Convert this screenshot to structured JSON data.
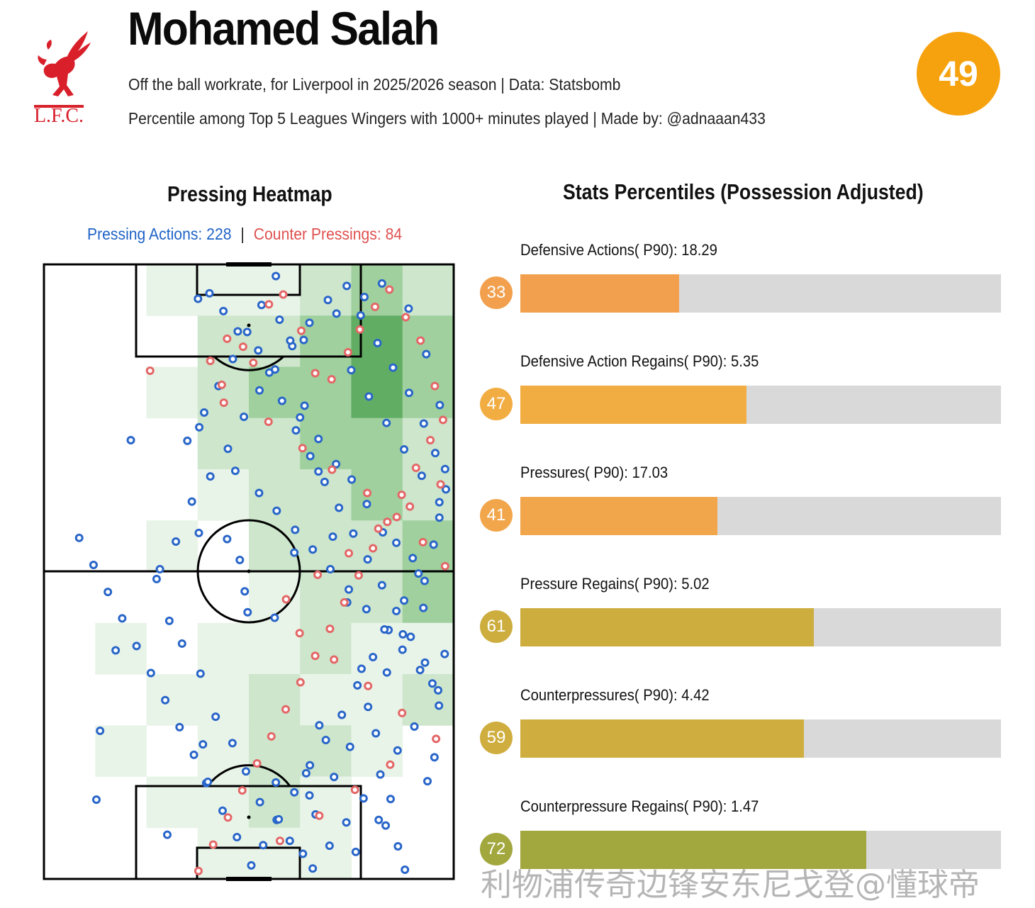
{
  "header": {
    "title": "Mohamed Salah",
    "subtitle1": "Off the ball workrate, for Liverpool in 2025/2026 season | Data: Statsbomb",
    "subtitle2": "Percentile among Top 5 Leagues Wingers with 1000+ minutes played | Made by: @adnaaan433",
    "overall_score": "49",
    "logo_text": "L.F.C."
  },
  "heatmap": {
    "title": "Pressing Heatmap",
    "pressing_label": "Pressing Actions: 228",
    "separator": "|",
    "counter_label": "Counter Pressings: 84"
  },
  "stats": {
    "title": "Stats Percentiles (Possession Adjusted)",
    "items": [
      {
        "label": "Defensive Actions( P90): 18.29",
        "percentile": "33",
        "value": 33,
        "color": "#f2a04e"
      },
      {
        "label": "Defensive Action Regains( P90): 5.35",
        "percentile": "47",
        "value": 47,
        "color": "#f2ad42"
      },
      {
        "label": "Pressures( P90): 17.03",
        "percentile": "41",
        "value": 41,
        "color": "#f2a64c"
      },
      {
        "label": "Pressure Regains( P90): 5.02",
        "percentile": "61",
        "value": 61,
        "color": "#ccad3e"
      },
      {
        "label": "Counterpressures( P90): 4.42",
        "percentile": "59",
        "value": 59,
        "color": "#cfae3f"
      },
      {
        "label": "Counterpressure Regains( P90): 1.47",
        "percentile": "72",
        "value": 72,
        "color": "#a2a73e"
      }
    ]
  },
  "watermark": "利物浦传奇边锋安东尼戈登@懂球帝",
  "chart_data": {
    "type": "bar",
    "title": "Stats Percentiles (Possession Adjusted)",
    "categories": [
      "Defensive Actions( P90)",
      "Defensive Action Regains( P90)",
      "Pressures( P90)",
      "Pressure Regains( P90)",
      "Counterpressures( P90)",
      "Counterpressure Regains( P90)"
    ],
    "values": [
      33,
      47,
      41,
      61,
      59,
      72
    ],
    "raw_values": [
      18.29,
      5.35,
      17.03,
      5.02,
      4.42,
      1.47
    ],
    "xlim": [
      0,
      100
    ],
    "heatmap": {
      "pressing_actions": 228,
      "counter_pressings": 84,
      "grid_cols": 8,
      "grid_rows": 12,
      "intensity": [
        [
          0,
          0,
          1,
          1,
          1,
          2,
          3,
          2
        ],
        [
          0,
          0,
          0,
          2,
          2,
          3,
          4,
          3
        ],
        [
          0,
          0,
          1,
          2,
          3,
          3,
          4,
          3
        ],
        [
          0,
          0,
          0,
          2,
          2,
          3,
          3,
          2
        ],
        [
          0,
          0,
          0,
          1,
          2,
          2,
          3,
          2
        ],
        [
          0,
          0,
          1,
          0,
          2,
          2,
          2,
          3
        ],
        [
          0,
          0,
          0,
          0,
          1,
          2,
          2,
          3
        ],
        [
          0,
          1,
          0,
          1,
          1,
          2,
          1,
          1
        ],
        [
          0,
          0,
          1,
          1,
          2,
          1,
          1,
          2
        ],
        [
          0,
          1,
          0,
          1,
          2,
          2,
          1,
          0
        ],
        [
          0,
          0,
          1,
          1,
          2,
          1,
          0,
          0
        ],
        [
          0,
          0,
          0,
          1,
          1,
          1,
          0,
          0
        ]
      ],
      "pressing_points": [
        [
          12.8,
          87.1
        ],
        [
          13.7,
          75.9
        ],
        [
          17.5,
          62.8
        ],
        [
          21.2,
          28.6
        ],
        [
          27.5,
          51.2
        ],
        [
          30.1,
          92.8
        ],
        [
          39.6,
          84.4
        ],
        [
          35.0,
          28.7
        ],
        [
          37.9,
          26.5
        ],
        [
          37.8,
          43.7
        ],
        [
          38.8,
          78.1
        ],
        [
          46.7,
          33.6
        ],
        [
          44.7,
          44.7
        ],
        [
          47.8,
          48.1
        ],
        [
          49.0,
          53.2
        ],
        [
          49.7,
          56.6
        ],
        [
          56.3,
          57.5
        ],
        [
          56.6,
          84.3
        ],
        [
          61.1,
          46.9
        ],
        [
          67.2,
          75.0
        ],
        [
          64.0,
          82.8
        ],
        [
          64.8,
          86.4
        ],
        [
          76.1,
          95.6
        ],
        [
          81.7,
          90.4
        ],
        [
          83.4,
          91.3
        ],
        [
          86.4,
          94.7
        ],
        [
          93.6,
          84.1
        ],
        [
          95.3,
          80.2
        ],
        [
          96.4,
          71.8
        ],
        [
          94.8,
          68.2
        ],
        [
          97.8,
          63.4
        ],
        [
          92.9,
          51.5
        ],
        [
          90.0,
          47.8
        ],
        [
          86.0,
          45.3
        ],
        [
          82.7,
          43.6
        ],
        [
          78.8,
          39.0
        ],
        [
          75.1,
          35.0
        ],
        [
          71.3,
          32.5
        ],
        [
          67.0,
          28.4
        ],
        [
          62.5,
          24.9
        ],
        [
          58.1,
          22.2
        ],
        [
          55.0,
          17.6
        ],
        [
          52.3,
          14.0
        ],
        [
          47.3,
          10.9
        ],
        [
          43.8,
          7.6
        ],
        [
          37.6,
          5.6
        ],
        [
          40.4,
          4.7
        ],
        [
          57.5,
          9.0
        ],
        [
          63.4,
          12.3
        ],
        [
          71.4,
          8.0
        ],
        [
          78.2,
          5.3
        ],
        [
          82.5,
          3.1
        ],
        [
          89.0,
          7.2
        ],
        [
          93.3,
          14.6
        ],
        [
          96.6,
          22.9
        ],
        [
          97.9,
          33.3
        ],
        [
          96.5,
          41.2
        ],
        [
          92.6,
          55.9
        ],
        [
          87.6,
          60.2
        ],
        [
          83.7,
          66.4
        ],
        [
          79.1,
          72.0
        ],
        [
          74.7,
          78.5
        ],
        [
          70.8,
          83.4
        ],
        [
          66.3,
          89.5
        ],
        [
          63.2,
          95.9
        ],
        [
          60.0,
          93.8
        ],
        [
          56.8,
          90.4
        ],
        [
          52.7,
          87.5
        ],
        [
          49.3,
          82.5
        ],
        [
          46.0,
          77.9
        ],
        [
          41.9,
          73.6
        ],
        [
          38.2,
          66.6
        ],
        [
          33.7,
          61.7
        ],
        [
          30.6,
          58.0
        ],
        [
          28.3,
          49.6
        ],
        [
          32.2,
          45.1
        ],
        [
          36.1,
          38.6
        ],
        [
          40.6,
          34.5
        ],
        [
          44.9,
          30.0
        ],
        [
          48.8,
          24.8
        ],
        [
          52.6,
          20.5
        ],
        [
          56.4,
          17.1
        ],
        [
          60.6,
          13.3
        ],
        [
          64.8,
          9.5
        ],
        [
          69.3,
          5.8
        ],
        [
          73.9,
          3.5
        ],
        [
          77.3,
          8.3
        ],
        [
          81.4,
          12.8
        ],
        [
          85.2,
          16.8
        ],
        [
          89.1,
          20.9
        ],
        [
          92.7,
          25.9
        ],
        [
          95.5,
          30.7
        ],
        [
          98.1,
          36.6
        ],
        [
          95.1,
          45.6
        ],
        [
          91.4,
          50.3
        ],
        [
          87.9,
          54.7
        ],
        [
          84.1,
          59.5
        ],
        [
          80.3,
          63.9
        ],
        [
          76.5,
          68.5
        ],
        [
          72.7,
          73.3
        ],
        [
          68.8,
          77.4
        ],
        [
          64.9,
          81.5
        ],
        [
          61.1,
          85.9
        ],
        [
          57.3,
          90.3
        ],
        [
          53.5,
          94.5
        ],
        [
          50.6,
          97.8
        ],
        [
          47.1,
          93.2
        ],
        [
          43.6,
          88.9
        ],
        [
          40.0,
          84.2
        ],
        [
          36.6,
          79.8
        ],
        [
          33.1,
          75.3
        ],
        [
          29.6,
          70.9
        ],
        [
          26.1,
          66.5
        ],
        [
          22.6,
          62.1
        ],
        [
          19.1,
          57.6
        ],
        [
          15.6,
          53.3
        ],
        [
          12.1,
          48.9
        ],
        [
          8.6,
          44.5
        ],
        [
          52.5,
          37.2
        ],
        [
          56.8,
          40.1
        ],
        [
          61.3,
          43.2
        ],
        [
          65.6,
          46.4
        ],
        [
          69.9,
          49.6
        ],
        [
          74.4,
          52.9
        ],
        [
          78.7,
          56.1
        ],
        [
          83.1,
          59.4
        ],
        [
          87.5,
          62.7
        ],
        [
          91.8,
          66.0
        ],
        [
          96.2,
          69.3
        ],
        [
          90.4,
          75.2
        ],
        [
          86.3,
          79.1
        ],
        [
          82.1,
          83.0
        ],
        [
          78.0,
          86.9
        ],
        [
          73.8,
          90.8
        ],
        [
          69.7,
          94.6
        ],
        [
          65.6,
          98.3
        ],
        [
          88.1,
          98.5
        ],
        [
          84.6,
          87.0
        ],
        [
          81.0,
          76.3
        ],
        [
          77.5,
          65.8
        ],
        [
          74.0,
          55.0
        ],
        [
          70.5,
          44.3
        ],
        [
          67.0,
          33.7
        ],
        [
          63.6,
          23.0
        ],
        [
          60.1,
          12.4
        ],
        [
          56.6,
          1.9
        ],
        [
          53.1,
          6.6
        ],
        [
          49.6,
          11.0
        ],
        [
          46.1,
          15.4
        ],
        [
          42.6,
          19.8
        ],
        [
          39.1,
          24.1
        ],
        [
          75.0,
          17.2
        ],
        [
          79.3,
          21.5
        ],
        [
          83.6,
          25.8
        ],
        [
          87.9,
          30.1
        ],
        [
          92.2,
          34.4
        ],
        [
          96.5,
          38.7
        ],
        [
          61.5,
          27.0
        ],
        [
          65.0,
          31.2
        ],
        [
          68.5,
          35.4
        ],
        [
          72.0,
          39.6
        ],
        [
          75.5,
          43.8
        ],
        [
          79.0,
          48.0
        ],
        [
          82.5,
          52.2
        ],
        [
          86.0,
          56.4
        ],
        [
          89.5,
          60.6
        ],
        [
          93.0,
          64.8
        ]
      ],
      "counter_points": [
        [
          40.6,
          15.7
        ],
        [
          43.4,
          19.6
        ],
        [
          44.7,
          12.1
        ],
        [
          48.6,
          13.4
        ],
        [
          51.1,
          16.0
        ],
        [
          54.9,
          6.5
        ],
        [
          58.4,
          4.9
        ],
        [
          62.8,
          10.8
        ],
        [
          66.2,
          17.7
        ],
        [
          70.2,
          18.7
        ],
        [
          74.2,
          14.3
        ],
        [
          77.1,
          10.6
        ],
        [
          80.8,
          6.9
        ],
        [
          84.3,
          4.1
        ],
        [
          88.3,
          8.6
        ],
        [
          91.9,
          12.4
        ],
        [
          95.4,
          19.8
        ],
        [
          97.4,
          25.3
        ],
        [
          94.3,
          28.6
        ],
        [
          90.8,
          33.1
        ],
        [
          87.3,
          37.5
        ],
        [
          83.8,
          41.9
        ],
        [
          80.3,
          46.2
        ],
        [
          76.8,
          50.6
        ],
        [
          73.3,
          55.0
        ],
        [
          69.8,
          59.3
        ],
        [
          66.2,
          63.7
        ],
        [
          62.6,
          68.0
        ],
        [
          59.0,
          72.4
        ],
        [
          55.5,
          76.8
        ],
        [
          52.0,
          81.2
        ],
        [
          48.4,
          85.6
        ],
        [
          44.9,
          90.0
        ],
        [
          41.3,
          94.4
        ],
        [
          37.7,
          98.7
        ],
        [
          25.9,
          17.3
        ],
        [
          43.9,
          22.5
        ],
        [
          54.8,
          25.6
        ],
        [
          63.1,
          29.9
        ],
        [
          70.3,
          33.4
        ],
        [
          78.9,
          37.2
        ],
        [
          86.1,
          41.1
        ],
        [
          92.5,
          45.2
        ],
        [
          97.9,
          49.1
        ],
        [
          59.1,
          54.5
        ],
        [
          66.8,
          50.5
        ],
        [
          74.4,
          47.0
        ],
        [
          81.6,
          43.0
        ],
        [
          89.3,
          39.4
        ],
        [
          96.8,
          35.8
        ],
        [
          62.4,
          60.0
        ],
        [
          70.8,
          64.3
        ],
        [
          79.1,
          68.6
        ],
        [
          87.4,
          73.0
        ],
        [
          95.7,
          77.2
        ],
        [
          84.5,
          81.4
        ],
        [
          75.9,
          85.5
        ],
        [
          67.2,
          89.7
        ],
        [
          57.6,
          93.8
        ]
      ]
    }
  }
}
